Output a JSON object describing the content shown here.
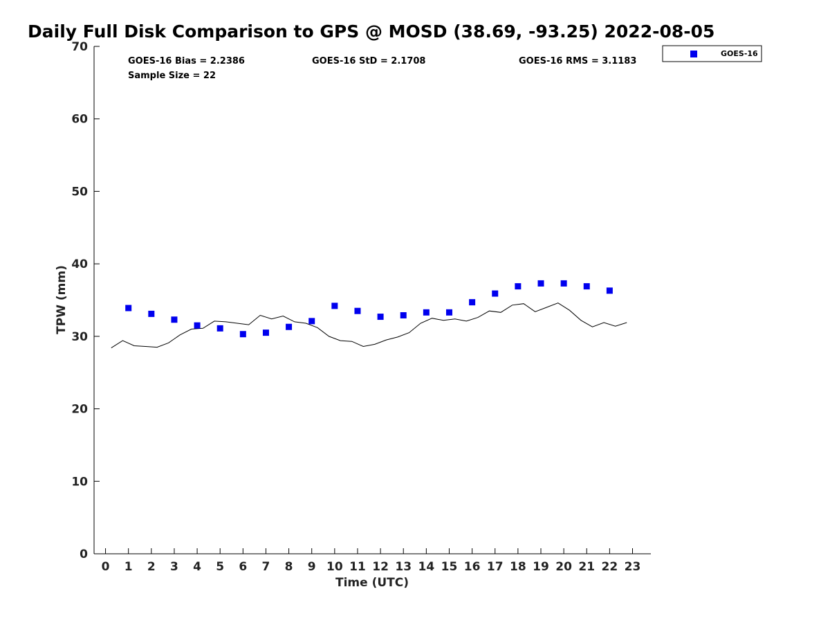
{
  "chart_data": {
    "type": "scatter",
    "title": "Daily Full Disk Comparison to GPS @ MOSD (38.69, -93.25) 2022-08-05",
    "xlabel": "Time (UTC)",
    "ylabel": "TPW (mm)",
    "xlim": [
      -0.5,
      23.8
    ],
    "ylim": [
      0,
      70
    ],
    "x_ticks": [
      0,
      1,
      2,
      3,
      4,
      5,
      6,
      7,
      8,
      9,
      10,
      11,
      12,
      13,
      14,
      15,
      16,
      17,
      18,
      19,
      20,
      21,
      22,
      23
    ],
    "y_ticks": [
      0,
      10,
      20,
      30,
      40,
      50,
      60,
      70
    ],
    "grid": false,
    "legend_position": "top-right, outside plot",
    "stats": {
      "bias": "GOES-16 Bias = 2.2386",
      "std": "GOES-16 StD = 2.1708",
      "rms": "GOES-16 RMS = 3.1183",
      "sample": "Sample Size = 22"
    },
    "series": [
      {
        "name": "GOES-16",
        "kind": "scatter",
        "color": "#0000ee",
        "marker": "square",
        "x": [
          1,
          2,
          3,
          4,
          5,
          6,
          7,
          8,
          9,
          10,
          11,
          12,
          13,
          14,
          15,
          16,
          17,
          18,
          19,
          20,
          21,
          22
        ],
        "y": [
          33.9,
          33.1,
          32.3,
          31.5,
          31.1,
          30.3,
          30.5,
          31.3,
          32.1,
          34.2,
          33.5,
          32.7,
          32.9,
          33.3,
          33.3,
          34.7,
          35.9,
          36.9,
          37.3,
          37.3,
          36.9,
          36.3
        ]
      },
      {
        "kind": "line",
        "color": "#000000",
        "x": [
          0.25,
          0.75,
          1.25,
          1.75,
          2.25,
          2.75,
          3.25,
          3.75,
          4.25,
          4.75,
          5.25,
          5.75,
          6.25,
          6.75,
          7.25,
          7.75,
          8.25,
          8.75,
          9.25,
          9.75,
          10.25,
          10.75,
          11.25,
          11.75,
          12.25,
          12.75,
          13.25,
          13.75,
          14.25,
          14.75,
          15.25,
          15.75,
          16.25,
          16.75,
          17.25,
          17.75,
          18.25,
          18.75,
          19.25,
          19.75,
          20.25,
          20.75,
          21.25,
          21.75,
          22.25,
          22.75
        ],
        "y": [
          28.4,
          29.4,
          28.7,
          28.6,
          28.5,
          29.1,
          30.2,
          31.0,
          31.1,
          32.1,
          32.0,
          31.8,
          31.6,
          32.9,
          32.4,
          32.8,
          32.0,
          31.8,
          31.2,
          30.0,
          29.4,
          29.3,
          28.6,
          28.9,
          29.5,
          29.9,
          30.5,
          31.8,
          32.5,
          32.2,
          32.4,
          32.1,
          32.6,
          33.5,
          33.3,
          34.3,
          34.5,
          33.4,
          34.0,
          34.6,
          33.6,
          32.2,
          31.3,
          31.9,
          31.4,
          31.9
        ]
      }
    ]
  }
}
